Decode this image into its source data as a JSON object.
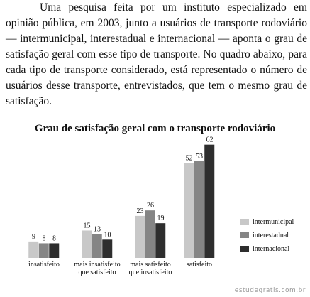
{
  "paragraph": "Uma pesquisa feita por um instituto especializado em opinião pública, em 2003, junto a usuários de transporte rodoviário — intermunicipal, interestadual e internacional — aponta o grau de satisfação geral com esse tipo de transporte. No quadro abaixo, para cada tipo de transporte considerado, está representado o número de usuários desse transporte, entrevistados, que tem o mesmo grau de satisfação.",
  "chart_data": {
    "type": "bar",
    "title": "Grau de satisfação geral com o transporte rodoviário",
    "categories": [
      "insatisfeito",
      "mais insatisfeito que satisfeito",
      "mais satisfeito que insatisfeito",
      "satisfeito"
    ],
    "series": [
      {
        "name": "intermunicipal",
        "color": "#c8c8c8",
        "values": [
          9,
          15,
          23,
          52
        ]
      },
      {
        "name": "interestadual",
        "color": "#858585",
        "values": [
          8,
          13,
          26,
          53
        ]
      },
      {
        "name": "internacional",
        "color": "#2e2e2e",
        "values": [
          8,
          10,
          19,
          62
        ]
      }
    ]
  },
  "watermark": "estudegratis.com.br"
}
